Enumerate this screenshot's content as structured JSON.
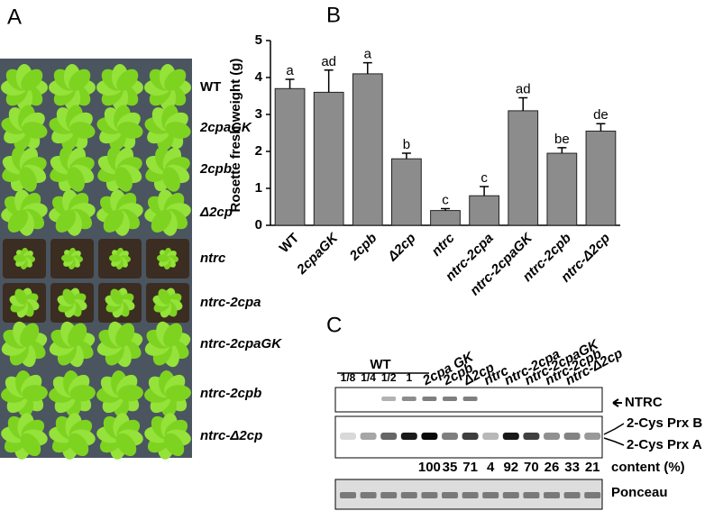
{
  "panel_letters": [
    "A",
    "B",
    "C"
  ],
  "panel_a": {
    "labels": [
      "WT",
      "2cpaGK",
      "2cpb",
      "Δ2cp",
      "ntrc",
      "ntrc-2cpa",
      "ntrc-2cpaGK",
      "ntrc-2cpb",
      "ntrc-Δ2cp"
    ]
  },
  "chart_data": {
    "type": "bar",
    "y_label": "Rosette fresh weight (g)",
    "categories": [
      "WT",
      "2cpaGK",
      "2cpb",
      "Δ2cp",
      "ntrc",
      "ntrc-2cpa",
      "ntrc-2cpaGK",
      "ntrc-2cpb",
      "ntrc-Δ2cp"
    ],
    "values": [
      3.7,
      3.6,
      4.1,
      1.8,
      0.4,
      0.8,
      3.1,
      1.95,
      2.55
    ],
    "errors": [
      0.25,
      0.6,
      0.3,
      0.15,
      0.05,
      0.25,
      0.35,
      0.15,
      0.2
    ],
    "significance_letters": [
      "a",
      "ad",
      "a",
      "b",
      "c",
      "c",
      "ad",
      "be",
      "de"
    ],
    "color": "#8c8c8c",
    "ylim": [
      0,
      5
    ],
    "yticks": [
      0,
      1,
      2,
      3,
      4,
      5
    ]
  },
  "panel_c": {
    "wt_label": "WT",
    "wt_lanes": [
      "1/8",
      "1/4",
      "1/2",
      "1"
    ],
    "lanes": [
      "2cpa GK",
      "2cpb",
      "Δ2cp",
      "ntrc",
      "ntrc-2cpa",
      "ntrc-2cpaGK",
      "ntrc-2cpb",
      "ntrc-Δ2cp"
    ],
    "band_labels": [
      "NTRC",
      "2-Cys Prx B",
      "2-Cys Prx A",
      "Ponceau"
    ],
    "content": [
      100,
      35,
      71,
      4,
      92,
      70,
      26,
      33,
      21
    ],
    "content_label": "content (%)"
  }
}
